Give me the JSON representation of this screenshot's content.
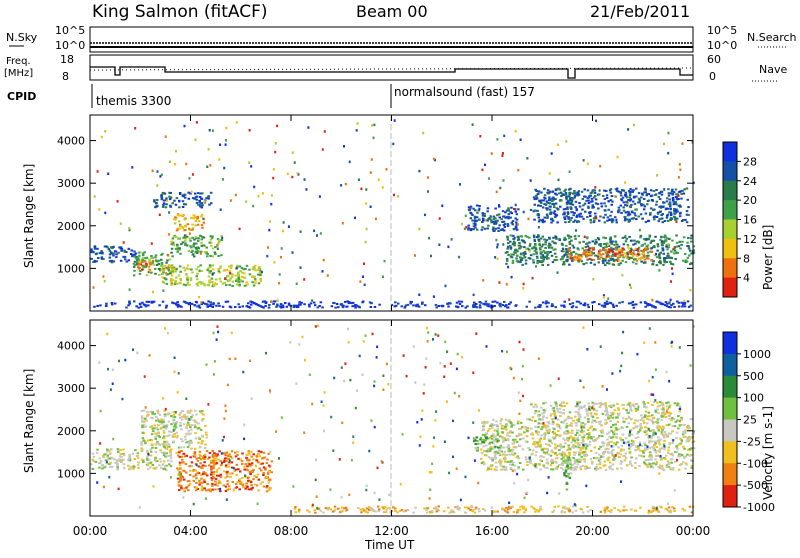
{
  "header": {
    "station": "King Salmon (fitACF)",
    "beam": "Beam 00",
    "date": "21/Feb/2011"
  },
  "nsky_panel": {
    "left_label": "N.Sky",
    "right_label": "N.Search",
    "left_ticks": [
      "10^5",
      "10^0"
    ],
    "right_ticks": [
      "10^5",
      "10^0"
    ]
  },
  "freq_panel": {
    "left_label_line1": "Freq.",
    "left_label_line2": "[MHz]",
    "right_label": "Nave",
    "left_ticks": [
      "18",
      "8"
    ],
    "right_ticks": [
      "60",
      "0"
    ]
  },
  "cpid": {
    "label": "CPID",
    "segments": [
      {
        "start_hour": 0,
        "label": "themis 3300"
      },
      {
        "start_hour": 12,
        "label": "normalsound (fast) 157"
      }
    ]
  },
  "x_axis": {
    "title": "Time UT",
    "ticks": [
      "00:00",
      "04:00",
      "08:00",
      "12:00",
      "16:00",
      "20:00",
      "00:00"
    ],
    "range_hours": [
      0,
      24
    ]
  },
  "colors": {
    "power": [
      "#1030e0",
      "#1450a8",
      "#2a7a4a",
      "#3fa04a",
      "#a8d030",
      "#f0c010",
      "#f07010",
      "#e02010"
    ],
    "velocity": [
      "#1030e0",
      "#1060a0",
      "#2a8a3a",
      "#70c040",
      "#c8c8c0",
      "#f0c020",
      "#f08010",
      "#e02010"
    ]
  },
  "chart_data": [
    {
      "type": "heatmap",
      "name": "power",
      "ylabel": "Slant Range [km]",
      "xlabel": "",
      "ylim": [
        0,
        4600
      ],
      "yticks": [
        "1000",
        "2000",
        "3000",
        "4000"
      ],
      "colorbar_label": "Power [dB]",
      "colorbar_ticks": [
        "28",
        "24",
        "20",
        "16",
        "12",
        "8",
        "4"
      ],
      "regions": [
        {
          "t0": 0.0,
          "t1": 1.8,
          "r0": 1150,
          "r1": 1550,
          "color_index": 1
        },
        {
          "t0": 1.7,
          "t1": 3.2,
          "r0": 850,
          "r1": 1400,
          "color_index": 3
        },
        {
          "t0": 1.8,
          "t1": 2.5,
          "r0": 950,
          "r1": 1200,
          "color_index": 6
        },
        {
          "t0": 2.8,
          "t1": 6.8,
          "r0": 600,
          "r1": 1100,
          "color_index": 4
        },
        {
          "t0": 3.2,
          "t1": 5.2,
          "r0": 1300,
          "r1": 1800,
          "color_index": 3
        },
        {
          "t0": 3.3,
          "t1": 4.5,
          "r0": 1900,
          "r1": 2300,
          "color_index": 5
        },
        {
          "t0": 2.5,
          "t1": 4.8,
          "r0": 2450,
          "r1": 2800,
          "color_index": 1
        },
        {
          "t0": 15.0,
          "t1": 17.0,
          "r0": 1900,
          "r1": 2500,
          "color_index": 1
        },
        {
          "t0": 16.5,
          "t1": 24.0,
          "r0": 1100,
          "r1": 1800,
          "color_index": 2
        },
        {
          "t0": 19.0,
          "t1": 22.5,
          "r0": 1200,
          "r1": 1500,
          "color_index": 6
        },
        {
          "t0": 17.5,
          "t1": 23.8,
          "r0": 2100,
          "r1": 2900,
          "color_index": 1
        },
        {
          "t0": 0.0,
          "t1": 24.0,
          "r0": 100,
          "r1": 250,
          "color_index": 0
        }
      ]
    },
    {
      "type": "heatmap",
      "name": "velocity",
      "ylabel": "Slant Range [km]",
      "xlabel": "Time UT",
      "ylim": [
        0,
        4600
      ],
      "yticks": [
        "1000",
        "2000",
        "3000",
        "4000"
      ],
      "colorbar_label": "Velocity [m s-1]",
      "colorbar_ticks": [
        "1000",
        "500",
        "100",
        "25",
        "-25",
        "-100",
        "-500",
        "-1000"
      ],
      "regions": [
        {
          "t0": 0.0,
          "t1": 3.2,
          "r0": 1100,
          "r1": 1600,
          "color_index": 4
        },
        {
          "t0": 2.0,
          "t1": 4.6,
          "r0": 1600,
          "r1": 2500,
          "color_index": 4
        },
        {
          "t0": 3.4,
          "t1": 7.2,
          "r0": 600,
          "r1": 1550,
          "color_index": 6
        },
        {
          "t0": 15.5,
          "t1": 24.0,
          "r0": 1100,
          "r1": 2300,
          "color_index": 4
        },
        {
          "t0": 17.5,
          "t1": 23.5,
          "r0": 2300,
          "r1": 2700,
          "color_index": 4
        },
        {
          "t0": 15.2,
          "t1": 16.2,
          "r0": 1500,
          "r1": 1900,
          "color_index": 3
        },
        {
          "t0": 18.8,
          "t1": 19.1,
          "r0": 600,
          "r1": 1400,
          "color_index": 3
        },
        {
          "t0": 8.0,
          "t1": 24.0,
          "r0": 100,
          "r1": 250,
          "color_index": 5
        }
      ]
    }
  ]
}
